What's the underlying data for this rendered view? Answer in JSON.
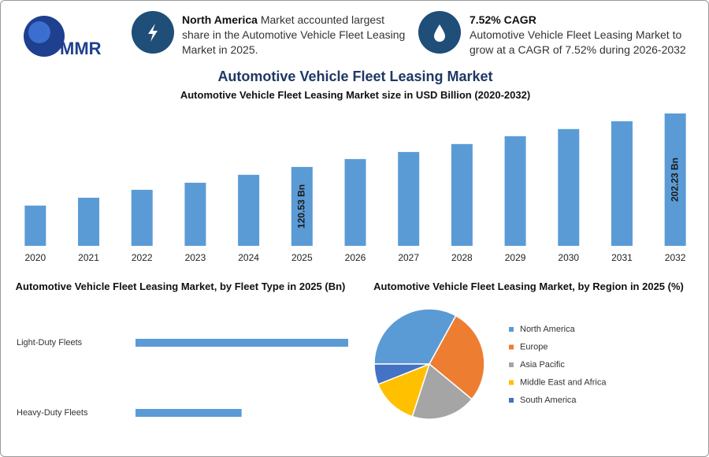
{
  "header": {
    "logo": "MMR",
    "info": [
      {
        "highlight": "North America",
        "text": "Market accounted largest share in the Automotive Vehicle Fleet Leasing Market in 2025."
      },
      {
        "highlight": "7.52% CAGR",
        "text": "Automotive Vehicle Fleet Leasing Market to grow at a CAGR of 7.52% during 2026-2032"
      }
    ]
  },
  "title": "Automotive Vehicle Fleet Leasing Market",
  "chart_data": [
    {
      "type": "bar",
      "title": "Automotive Vehicle Fleet Leasing Market size in USD Billion (2020-2032)",
      "categories": [
        "2020",
        "2021",
        "2022",
        "2023",
        "2024",
        "2025",
        "2026",
        "2027",
        "2028",
        "2029",
        "2030",
        "2031",
        "2032"
      ],
      "values": [
        61.5,
        73.5,
        85.6,
        96.4,
        108.5,
        120.53,
        132.6,
        143.4,
        155.5,
        167.5,
        178.4,
        190.4,
        202.23
      ],
      "value_labels": [
        null,
        null,
        null,
        null,
        null,
        "120.53 Bn",
        null,
        null,
        null,
        null,
        null,
        null,
        "202.23 Bn"
      ],
      "color": "#5b9bd5"
    },
    {
      "type": "hbar",
      "title": "Automotive Vehicle Fleet Leasing Market, by Fleet Type in 2025 (Bn)",
      "categories": [
        "Light-Duty Fleets",
        "Heavy-Duty Fleets"
      ],
      "values": [
        80.4,
        40.1
      ],
      "color": "#5b9bd5"
    },
    {
      "type": "pie",
      "title": "Automotive Vehicle Fleet Leasing Market, by Region in 2025 (%)",
      "categories": [
        "North America",
        "Europe",
        "Asia Pacific",
        "Middle East and Africa",
        "South America"
      ],
      "values": [
        33,
        28,
        19,
        14,
        6
      ],
      "colors": [
        "#5b9bd5",
        "#ed7d31",
        "#a5a5a5",
        "#ffc000",
        "#4472c4"
      ],
      "legend": "right"
    }
  ]
}
